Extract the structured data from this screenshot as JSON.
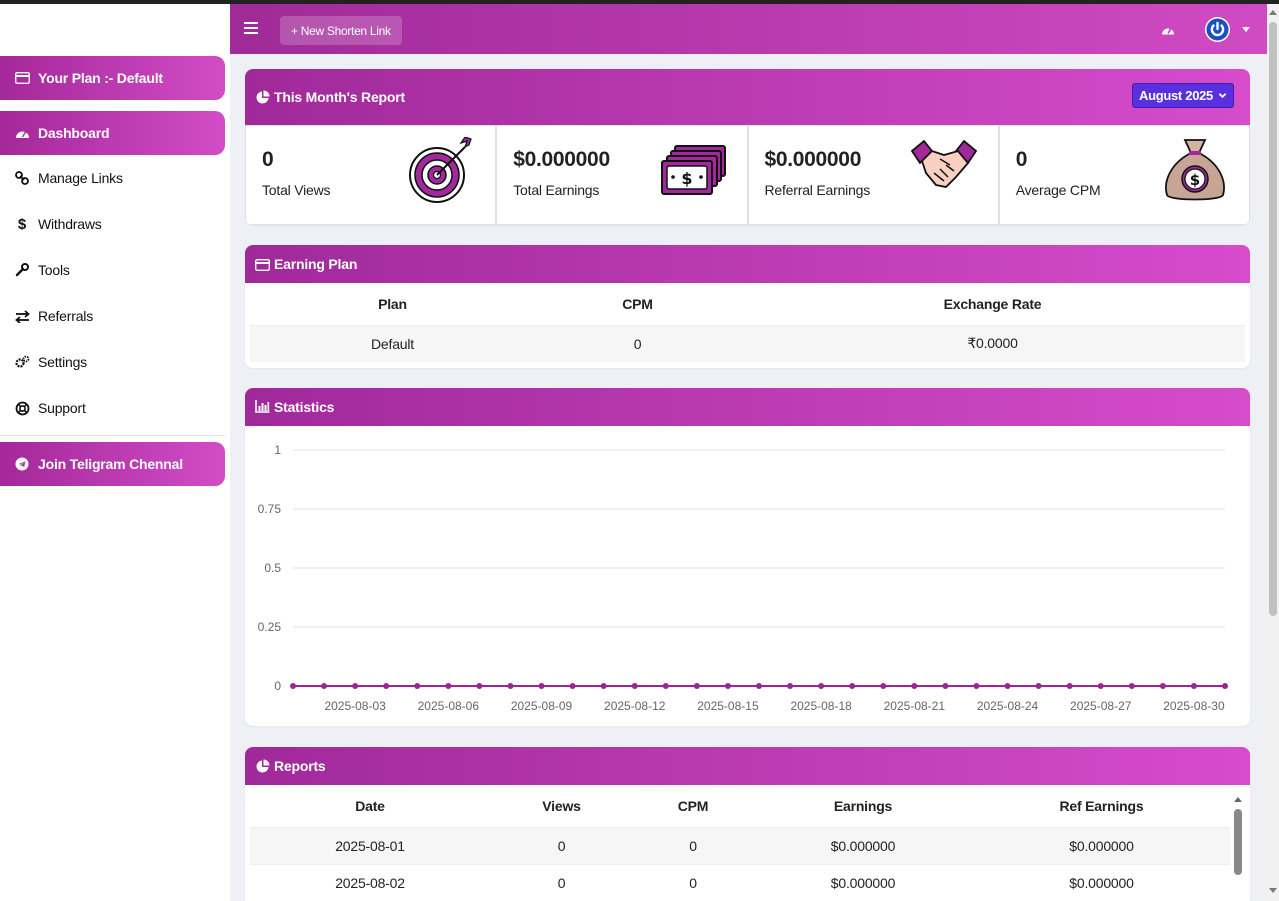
{
  "sidebar": {
    "plan_label": "Your Plan :- Default",
    "items": [
      {
        "label": "Dashboard",
        "icon": "dashboard-icon"
      },
      {
        "label": "Manage Links",
        "icon": "link-icon"
      },
      {
        "label": "Withdraws",
        "icon": "dollar-icon"
      },
      {
        "label": "Tools",
        "icon": "wrench-icon"
      },
      {
        "label": "Referrals",
        "icon": "exchange-icon"
      },
      {
        "label": "Settings",
        "icon": "gears-icon"
      },
      {
        "label": "Support",
        "icon": "life-ring-icon"
      }
    ],
    "telegram_label": "Join Teligram Chennal"
  },
  "header": {
    "new_link_label": "+ New Shorten Link"
  },
  "month_report": {
    "title": "This Month's Report",
    "selected_month": "August 2025",
    "stats": [
      {
        "value": "0",
        "label": "Total Views",
        "icon": "target-icon"
      },
      {
        "value": "$0.000000",
        "label": "Total Earnings",
        "icon": "money-stack-icon"
      },
      {
        "value": "$0.000000",
        "label": "Referral Earnings",
        "icon": "handshake-icon"
      },
      {
        "value": "0",
        "label": "Average CPM",
        "icon": "money-bag-icon"
      }
    ]
  },
  "earning_plan": {
    "title": "Earning Plan",
    "headers": [
      "Plan",
      "CPM",
      "Exchange Rate"
    ],
    "rows": [
      [
        "Default",
        "0",
        "₹0.0000"
      ]
    ]
  },
  "statistics": {
    "title": "Statistics"
  },
  "chart_data": {
    "type": "line",
    "x": [
      "2025-08-01",
      "2025-08-02",
      "2025-08-03",
      "2025-08-04",
      "2025-08-05",
      "2025-08-06",
      "2025-08-07",
      "2025-08-08",
      "2025-08-09",
      "2025-08-10",
      "2025-08-11",
      "2025-08-12",
      "2025-08-13",
      "2025-08-14",
      "2025-08-15",
      "2025-08-16",
      "2025-08-17",
      "2025-08-18",
      "2025-08-19",
      "2025-08-20",
      "2025-08-21",
      "2025-08-22",
      "2025-08-23",
      "2025-08-24",
      "2025-08-25",
      "2025-08-26",
      "2025-08-27",
      "2025-08-28",
      "2025-08-29",
      "2025-08-30",
      "2025-08-31"
    ],
    "x_tick_labels": [
      "2025-08-03",
      "2025-08-06",
      "2025-08-09",
      "2025-08-12",
      "2025-08-15",
      "2025-08-18",
      "2025-08-21",
      "2025-08-24",
      "2025-08-27",
      "2025-08-30"
    ],
    "series": [
      {
        "values": [
          0,
          0,
          0,
          0,
          0,
          0,
          0,
          0,
          0,
          0,
          0,
          0,
          0,
          0,
          0,
          0,
          0,
          0,
          0,
          0,
          0,
          0,
          0,
          0,
          0,
          0,
          0,
          0,
          0,
          0,
          0
        ],
        "color": "#9b2596"
      }
    ],
    "y_ticks": [
      "0",
      "0.25",
      "0.5",
      "0.75",
      "1"
    ],
    "ylim": [
      0,
      1
    ],
    "grid": true
  },
  "reports": {
    "title": "Reports",
    "headers": [
      "Date",
      "Views",
      "CPM",
      "Earnings",
      "Ref Earnings"
    ],
    "rows": [
      [
        "2025-08-01",
        "0",
        "0",
        "$0.000000",
        "$0.000000"
      ],
      [
        "2025-08-02",
        "0",
        "0",
        "$0.000000",
        "$0.000000"
      ]
    ]
  },
  "colors": {
    "accent_start": "#a0299a",
    "accent_end": "#d64ccb",
    "month_select": "#5a2fe0",
    "avatar_ring": "#1d4fc4"
  }
}
